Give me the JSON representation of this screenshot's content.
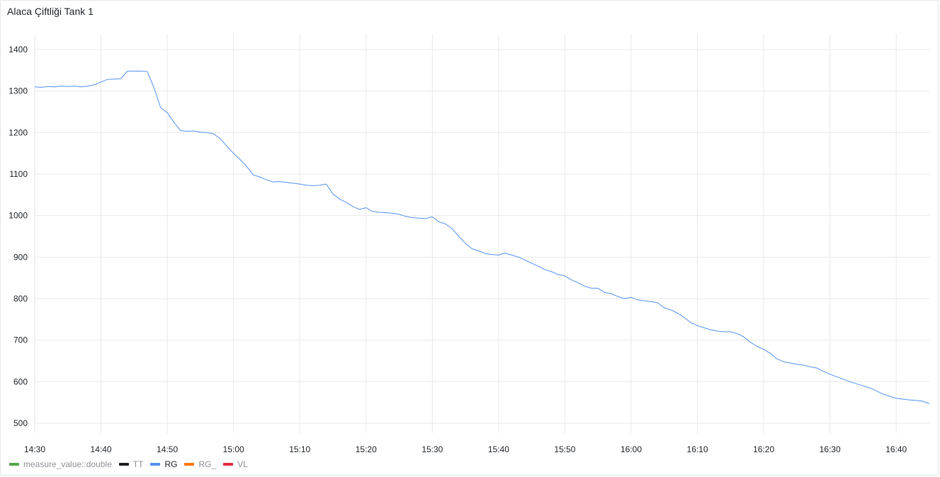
{
  "panel": {
    "title": "Alaca Çiftliği Tank 1"
  },
  "legend": [
    {
      "label": "measure_value::double",
      "color": "#56a64b",
      "active": false
    },
    {
      "label": "TT",
      "color": "#202226",
      "active": false
    },
    {
      "label": "RG",
      "color": "#5794f2",
      "active": true
    },
    {
      "label": "RG_",
      "color": "#ff780a",
      "active": false
    },
    {
      "label": "VL",
      "color": "#e02f44",
      "active": false
    }
  ],
  "chart_data": {
    "type": "line",
    "x_ticks": [
      "14:30",
      "14:40",
      "14:50",
      "15:00",
      "15:10",
      "15:20",
      "15:30",
      "15:40",
      "15:50",
      "16:00",
      "16:10",
      "16:20",
      "16:30",
      "16:40"
    ],
    "y_ticks": [
      1400,
      1300,
      1200,
      1100,
      1000,
      900,
      800,
      700,
      600,
      500
    ],
    "xlim": [
      "14:30",
      "16:45"
    ],
    "ylim": [
      500,
      1400
    ],
    "grid": true,
    "legend_position": "bottom-left",
    "series": [
      {
        "name": "RG",
        "color": "#5794f2",
        "x": [
          "14:30",
          "14:31",
          "14:32",
          "14:33",
          "14:34",
          "14:35",
          "14:36",
          "14:37",
          "14:38",
          "14:39",
          "14:40",
          "14:41",
          "14:42",
          "14:43",
          "14:44",
          "14:45",
          "14:46",
          "14:47",
          "14:48",
          "14:49",
          "14:50",
          "14:51",
          "14:52",
          "14:53",
          "14:54",
          "14:55",
          "14:56",
          "14:57",
          "14:58",
          "14:59",
          "15:00",
          "15:01",
          "15:02",
          "15:03",
          "15:04",
          "15:05",
          "15:06",
          "15:07",
          "15:08",
          "15:09",
          "15:10",
          "15:11",
          "15:12",
          "15:13",
          "15:14",
          "15:15",
          "15:16",
          "15:17",
          "15:18",
          "15:19",
          "15:20",
          "15:21",
          "15:22",
          "15:23",
          "15:24",
          "15:25",
          "15:26",
          "15:27",
          "15:28",
          "15:29",
          "15:30",
          "15:31",
          "15:32",
          "15:33",
          "15:34",
          "15:35",
          "15:36",
          "15:37",
          "15:38",
          "15:39",
          "15:40",
          "15:41",
          "15:42",
          "15:43",
          "15:44",
          "15:45",
          "15:46",
          "15:47",
          "15:48",
          "15:49",
          "15:50",
          "15:51",
          "15:52",
          "15:53",
          "15:54",
          "15:55",
          "15:56",
          "15:57",
          "15:58",
          "15:59",
          "16:00",
          "16:01",
          "16:02",
          "16:03",
          "16:04",
          "16:05",
          "16:06",
          "16:07",
          "16:08",
          "16:09",
          "16:10",
          "16:11",
          "16:12",
          "16:13",
          "16:14",
          "16:15",
          "16:16",
          "16:17",
          "16:18",
          "16:19",
          "16:20",
          "16:21",
          "16:22",
          "16:23",
          "16:24",
          "16:25",
          "16:26",
          "16:27",
          "16:28",
          "16:29",
          "16:30",
          "16:31",
          "16:32",
          "16:33",
          "16:34",
          "16:35",
          "16:36",
          "16:37",
          "16:38",
          "16:39",
          "16:40",
          "16:41",
          "16:42",
          "16:43",
          "16:44",
          "16:45"
        ],
        "values": [
          1310,
          1309,
          1311,
          1310,
          1312,
          1311,
          1312,
          1310,
          1312,
          1315,
          1322,
          1328,
          1329,
          1330,
          1348,
          1348,
          1348,
          1347,
          1308,
          1260,
          1248,
          1225,
          1205,
          1203,
          1204,
          1201,
          1200,
          1197,
          1185,
          1167,
          1150,
          1135,
          1118,
          1098,
          1093,
          1086,
          1081,
          1082,
          1080,
          1078,
          1076,
          1073,
          1072,
          1073,
          1076,
          1052,
          1040,
          1032,
          1022,
          1015,
          1019,
          1010,
          1008,
          1007,
          1006,
          1003,
          998,
          995,
          994,
          993,
          997,
          985,
          980,
          968,
          950,
          933,
          920,
          915,
          909,
          906,
          905,
          910,
          905,
          900,
          893,
          885,
          878,
          870,
          865,
          858,
          855,
          845,
          838,
          830,
          825,
          825,
          815,
          812,
          805,
          800,
          803,
          797,
          795,
          793,
          790,
          778,
          773,
          765,
          755,
          742,
          735,
          730,
          725,
          722,
          720,
          720,
          716,
          708,
          695,
          685,
          678,
          668,
          655,
          648,
          645,
          642,
          640,
          636,
          633,
          625,
          618,
          612,
          606,
          600,
          595,
          590,
          585,
          578,
          570,
          565,
          560,
          558,
          556,
          555,
          553,
          547
        ]
      }
    ]
  }
}
